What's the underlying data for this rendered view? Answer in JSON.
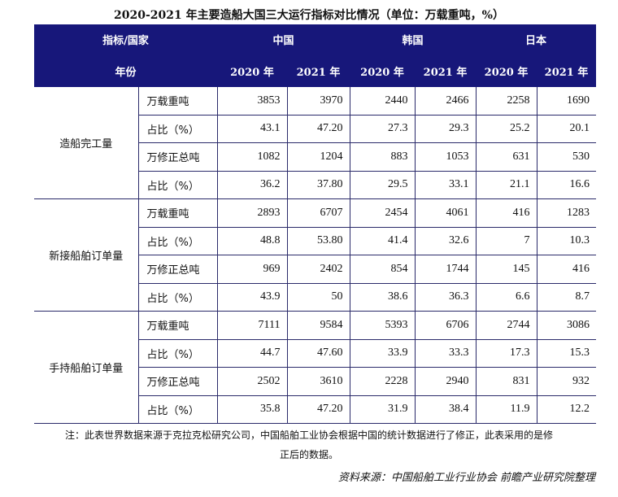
{
  "title": "2020-2021 年主要造船大国三大运行指标对比情况（单位：万载重吨，%）",
  "header": {
    "indicator_country": "指标/国家",
    "year_label": "年份",
    "countries": [
      "中国",
      "韩国",
      "日本"
    ],
    "years": [
      "2020 年",
      "2021 年",
      "2020 年",
      "2021 年",
      "2020 年",
      "2021 年"
    ]
  },
  "groups": [
    {
      "name": "造船完工量",
      "rows": [
        {
          "metric": "万载重吨",
          "values": [
            "3853",
            "3970",
            "2440",
            "2466",
            "2258",
            "1690"
          ]
        },
        {
          "metric": "占比（%）",
          "values": [
            "43.1",
            "47.20",
            "27.3",
            "29.3",
            "25.2",
            "20.1"
          ]
        },
        {
          "metric": "万修正总吨",
          "values": [
            "1082",
            "1204",
            "883",
            "1053",
            "631",
            "530"
          ]
        },
        {
          "metric": "占比（%）",
          "values": [
            "36.2",
            "37.80",
            "29.5",
            "33.1",
            "21.1",
            "16.6"
          ]
        }
      ]
    },
    {
      "name": "新接船舶订单量",
      "rows": [
        {
          "metric": "万载重吨",
          "values": [
            "2893",
            "6707",
            "2454",
            "4061",
            "416",
            "1283"
          ]
        },
        {
          "metric": "占比（%）",
          "values": [
            "48.8",
            "53.80",
            "41.4",
            "32.6",
            "7",
            "10.3"
          ]
        },
        {
          "metric": "万修正总吨",
          "values": [
            "969",
            "2402",
            "854",
            "1744",
            "145",
            "416"
          ]
        },
        {
          "metric": "占比（%）",
          "values": [
            "43.9",
            "50",
            "38.6",
            "36.3",
            "6.6",
            "8.7"
          ]
        }
      ]
    },
    {
      "name": "手持船舶订单量",
      "rows": [
        {
          "metric": "万载重吨",
          "values": [
            "7111",
            "9584",
            "5393",
            "6706",
            "2744",
            "3086"
          ]
        },
        {
          "metric": "占比（%）",
          "values": [
            "44.7",
            "47.60",
            "33.9",
            "33.3",
            "17.3",
            "15.3"
          ]
        },
        {
          "metric": "万修正总吨",
          "values": [
            "2502",
            "3610",
            "2228",
            "2940",
            "831",
            "932"
          ]
        },
        {
          "metric": "占比（%）",
          "values": [
            "35.8",
            "47.20",
            "31.9",
            "38.4",
            "11.9",
            "12.2"
          ]
        }
      ]
    }
  ],
  "note_line1": "注：此表世界数据来源于克拉克松研究公司，中国船舶工业协会根据中国的统计数据进行了修正，此表采用的是修",
  "note_line2": "正后的数据。",
  "source": "资料来源：中国船舶工业行业协会 前瞻产业研究院整理",
  "colors": {
    "header_bg": "#17177a",
    "header_text": "#ffffff"
  }
}
